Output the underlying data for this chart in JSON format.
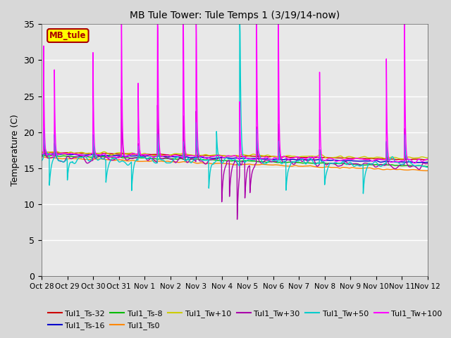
{
  "title": "MB Tule Tower: Tule Temps 1 (3/19/14-now)",
  "ylabel": "Temperature (C)",
  "ylim": [
    0,
    35
  ],
  "yticks": [
    0,
    5,
    10,
    15,
    20,
    25,
    30,
    35
  ],
  "x_tick_labels": [
    "Oct 28",
    "Oct 29",
    "Oct 30",
    "Oct 31",
    "Nov 1",
    "Nov 2",
    "Nov 3",
    "Nov 4",
    "Nov 5",
    "Nov 6",
    "Nov 7",
    "Nov 8",
    "Nov 9",
    "Nov 10",
    "Nov 11",
    "Nov 12"
  ],
  "legend_label": "MB_tule",
  "legend_box_color": "#ffff00",
  "legend_box_edge": "#aa0000",
  "legend_text_color": "#aa0000",
  "series": [
    {
      "label": "Tul1_Ts-32",
      "color": "#cc0000",
      "lw": 1.0
    },
    {
      "label": "Tul1_Ts-16",
      "color": "#0000cc",
      "lw": 1.0
    },
    {
      "label": "Tul1_Ts-8",
      "color": "#00bb00",
      "lw": 1.0
    },
    {
      "label": "Tul1_Ts0",
      "color": "#ff8800",
      "lw": 1.0
    },
    {
      "label": "Tul1_Tw+10",
      "color": "#cccc00",
      "lw": 1.0
    },
    {
      "label": "Tul1_Tw+30",
      "color": "#aa00aa",
      "lw": 1.0
    },
    {
      "label": "Tul1_Tw+50",
      "color": "#00cccc",
      "lw": 1.0
    },
    {
      "label": "Tul1_Tw+100",
      "color": "#ff00ff",
      "lw": 1.0
    }
  ],
  "bg_color": "#d8d8d8",
  "plot_bg_color": "#e8e8e8",
  "grid_color": "#ffffff"
}
